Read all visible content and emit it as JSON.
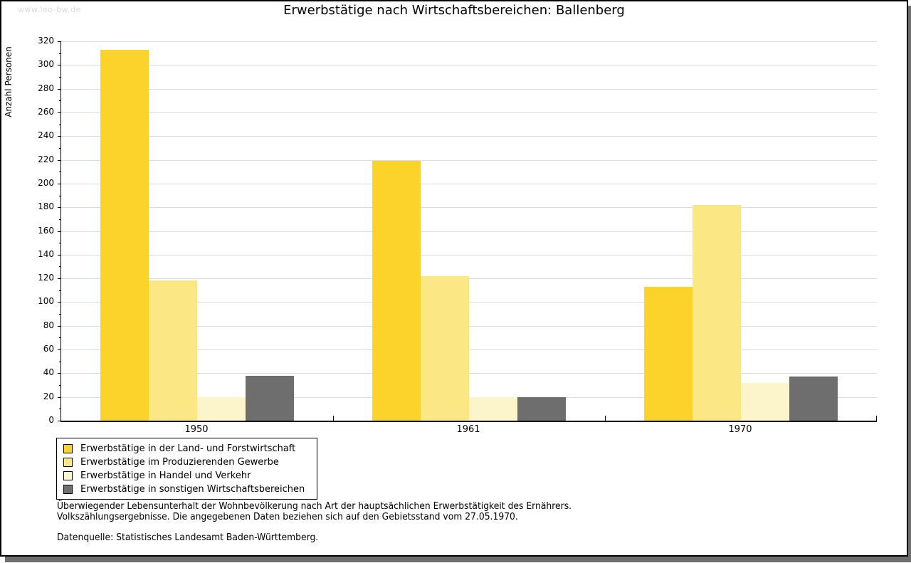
{
  "watermark": {
    "text": "www.leo-bw.de"
  },
  "chart_data": {
    "type": "bar",
    "title": "Erwerbstätige nach Wirtschaftsbereichen: Ballenberg",
    "xlabel": "",
    "ylabel": "Anzahl Personen",
    "ylim": [
      0,
      320
    ],
    "ytick_step": 20,
    "minor_tick_step": 10,
    "yticks": [
      0,
      20,
      40,
      60,
      80,
      100,
      120,
      140,
      160,
      180,
      200,
      220,
      240,
      260,
      280,
      300,
      320
    ],
    "grid": true,
    "legend_position": "bottom-left",
    "categories": [
      "1950",
      "1961",
      "1970"
    ],
    "series": [
      {
        "name": "Erwerbstätige in der Land- und Forstwirtschaft",
        "color": "#FCD32B",
        "values": [
          313,
          219,
          113
        ]
      },
      {
        "name": "Erwerbstätige im Produzierenden Gewerbe",
        "color": "#FBE884",
        "values": [
          118,
          122,
          182
        ]
      },
      {
        "name": "Erwerbstätige in Handel und Verkehr",
        "color": "#FCF4CB",
        "values": [
          20,
          20,
          32
        ]
      },
      {
        "name": "Erwerbstätige in sonstigen Wirtschaftsbereichen",
        "color": "#6E6E6E",
        "values": [
          38,
          20,
          37
        ]
      }
    ],
    "colors": {
      "gridline": "#DCDCDC",
      "axis": "#000000",
      "shadow": "#6E6E6E",
      "watermark": "#D9D9D9"
    }
  },
  "footnotes": {
    "line1": "Überwiegender Lebensunterhalt der Wohnbevölkerung nach Art der hauptsächlichen Erwerbstätigkeit des Ernährers.",
    "line2": "Volkszählungsergebnisse. Die angegebenen Daten beziehen sich auf den Gebietsstand vom 27.05.1970.",
    "source": "Datenquelle: Statistisches Landesamt Baden-Württemberg."
  }
}
